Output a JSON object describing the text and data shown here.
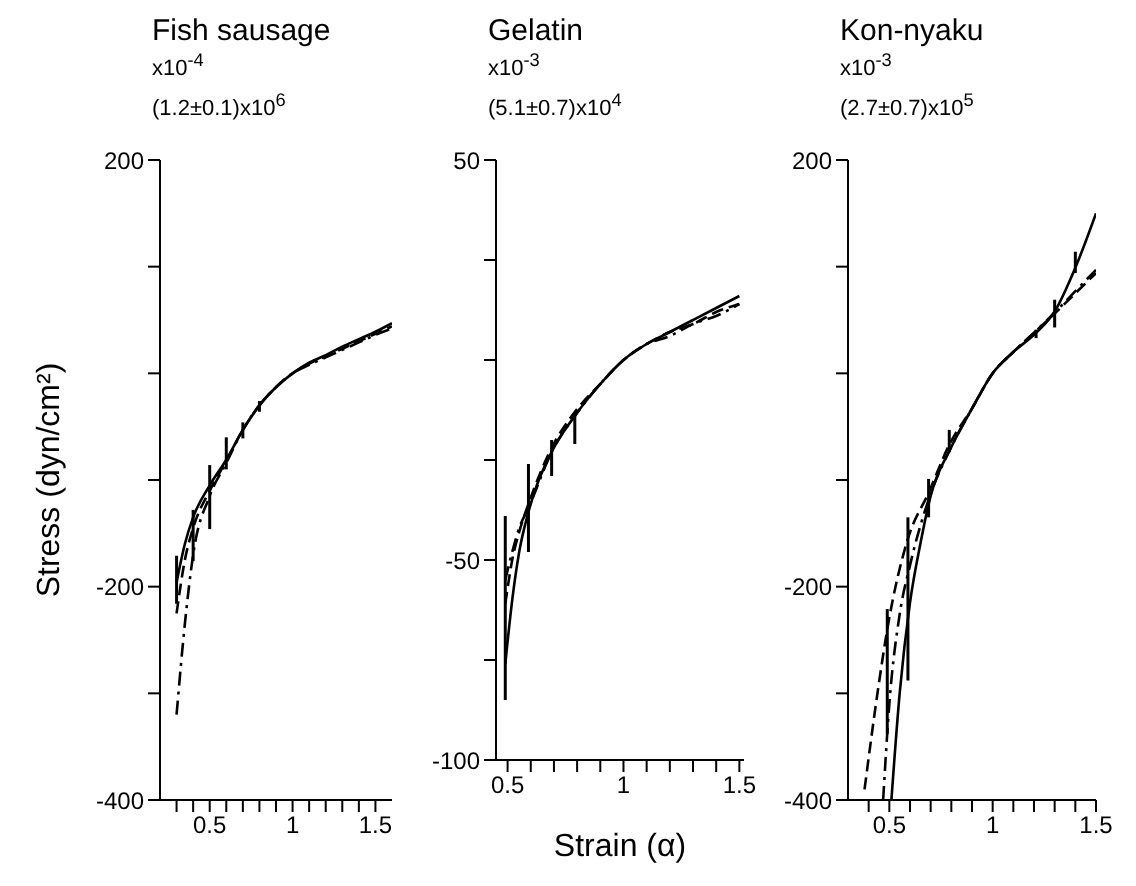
{
  "chart_data": [
    {
      "type": "line",
      "title": "Fish sausage",
      "ylabel": "Stress (dyn/cm²)",
      "annotations": [
        "x10$^{-4}$",
        "(1.2±0.1)x10$^{6}$"
      ],
      "xlim": [
        0.2,
        1.6
      ],
      "ylim": [
        -400,
        200
      ],
      "xticks": [
        {
          "value": 0.3,
          "label": null
        },
        {
          "value": 0.4,
          "label": null
        },
        {
          "value": 0.5,
          "label": "0.5"
        },
        {
          "value": 0.6,
          "label": null
        },
        {
          "value": 0.7,
          "label": null
        },
        {
          "value": 0.8,
          "label": null
        },
        {
          "value": 0.9,
          "label": null
        },
        1,
        {
          "value": 1.1,
          "label": null
        },
        {
          "value": 1.2,
          "label": null
        },
        {
          "value": 1.3,
          "label": null
        },
        {
          "value": 1.4,
          "label": null
        },
        1.5
      ],
      "yticks": [
        -400,
        {
          "value": -300,
          "label": null
        },
        -200,
        {
          "value": -100,
          "label": null
        },
        {
          "value": 0,
          "label": null
        },
        {
          "value": 100,
          "label": null
        },
        200
      ],
      "grid": false,
      "marker": "none",
      "series": [
        {
          "color": "#000000",
          "line_style": "solid",
          "x": [
            0.3,
            0.35,
            0.4,
            0.5,
            0.6,
            0.7,
            0.8,
            0.9,
            1,
            1.1,
            1.2,
            1.3,
            1.4,
            1.5,
            1.6
          ],
          "values": [
            -196,
            -160,
            -135,
            -105,
            -81,
            -53,
            -30,
            -13,
            0,
            10,
            17,
            25,
            32,
            39,
            47
          ],
          "errors": [
            [
              -216,
              -171
            ],
            null,
            [
              -176,
              -128
            ],
            [
              -146,
              -86
            ],
            [
              -90,
              -60
            ],
            [
              -61,
              -46
            ],
            [
              -36,
              -26
            ],
            null,
            null,
            null,
            null,
            null,
            null,
            null,
            null
          ]
        },
        {
          "color": "#000000",
          "line_style": "dashed",
          "x": [
            0.3,
            0.35,
            0.4,
            0.5,
            0.6,
            0.7,
            0.8,
            0.9,
            1,
            1.1,
            1.2,
            1.3,
            1.4,
            1.5,
            1.6
          ],
          "values": [
            -225,
            -175,
            -145,
            -110,
            -82,
            -53,
            -30,
            -13,
            0,
            9,
            16,
            23,
            30,
            37,
            44
          ]
        },
        {
          "color": "#000000",
          "line_style": "dotted",
          "x": [
            0.3,
            0.35,
            0.4,
            0.5,
            0.6,
            0.7,
            0.8,
            0.9,
            1,
            1.1,
            1.2,
            1.3,
            1.4,
            1.5,
            1.6
          ],
          "values": [
            -320,
            -235,
            -170,
            -115,
            -84,
            -53,
            -30,
            -13,
            0,
            8,
            15,
            22,
            29,
            36,
            42
          ]
        }
      ]
    },
    {
      "type": "line",
      "title": "Gelatin",
      "xlabel": "Strain (α)",
      "annotations": [
        "x10$^{-3}$",
        "(5.1±0.7)x10$^{4}$"
      ],
      "xlim": [
        0.45,
        1.52
      ],
      "ylim": [
        -100,
        50
      ],
      "xticks": [
        0.5,
        {
          "value": 0.6,
          "label": null
        },
        {
          "value": 0.7,
          "label": null
        },
        {
          "value": 0.8,
          "label": null
        },
        {
          "value": 0.9,
          "label": null
        },
        1,
        {
          "value": 1.1,
          "label": null
        },
        {
          "value": 1.2,
          "label": null
        },
        {
          "value": 1.3,
          "label": null
        },
        {
          "value": 1.4,
          "label": null
        },
        1.5
      ],
      "yticks": [
        -100,
        {
          "value": -75,
          "label": null
        },
        -50,
        {
          "value": -25,
          "label": null
        },
        {
          "value": 0,
          "label": null
        },
        {
          "value": 25,
          "label": null
        },
        50
      ],
      "grid": false,
      "marker": "none",
      "series": [
        {
          "color": "#000000",
          "line_style": "solid",
          "x": [
            0.49,
            0.52,
            0.55,
            0.59,
            0.69,
            0.79,
            0.9,
            1,
            1.1,
            1.2,
            1.3,
            1.4,
            1.5
          ],
          "values": [
            -76,
            -60,
            -48,
            -38,
            -23,
            -14,
            -6,
            0,
            4,
            7,
            10,
            13,
            16
          ],
          "errors": [
            [
              -85,
              -39
            ],
            null,
            null,
            [
              -48,
              -26
            ],
            [
              -29,
              -20
            ],
            [
              -21,
              -13
            ],
            null,
            null,
            null,
            null,
            null,
            null,
            null
          ]
        },
        {
          "color": "#000000",
          "line_style": "dashed",
          "x": [
            0.49,
            0.52,
            0.55,
            0.59,
            0.69,
            0.79,
            0.9,
            1,
            1.1,
            1.2,
            1.3,
            1.4,
            1.5
          ],
          "values": [
            -61,
            -50,
            -43,
            -36,
            -22,
            -13,
            -6,
            0,
            4,
            7,
            9,
            12,
            14
          ]
        },
        {
          "color": "#000000",
          "line_style": "dotted",
          "x": [
            0.49,
            0.52,
            0.55,
            0.59,
            0.69,
            0.79,
            0.9,
            1,
            1.1,
            1.2,
            1.3,
            1.4,
            1.5
          ],
          "values": [
            -55,
            -48,
            -42,
            -37,
            -23,
            -14,
            -6,
            0,
            4,
            6,
            9,
            11,
            14
          ]
        }
      ]
    },
    {
      "type": "line",
      "title": "Kon-nyaku",
      "annotations": [
        "x10$^{-3}$",
        "(2.7±0.7)x10$^{5}$"
      ],
      "xlim": [
        0.3,
        1.5
      ],
      "ylim": [
        -400,
        200
      ],
      "xticks": [
        {
          "value": 0.4,
          "label": null
        },
        0.5,
        {
          "value": 0.6,
          "label": null
        },
        {
          "value": 0.7,
          "label": null
        },
        {
          "value": 0.8,
          "label": null
        },
        {
          "value": 0.9,
          "label": null
        },
        1,
        {
          "value": 1.1,
          "label": null
        },
        {
          "value": 1.2,
          "label": null
        },
        {
          "value": 1.3,
          "label": null
        },
        {
          "value": 1.4,
          "label": null
        },
        1.5
      ],
      "yticks": [
        -400,
        {
          "value": -300,
          "label": null
        },
        -200,
        {
          "value": -100,
          "label": null
        },
        {
          "value": 0,
          "label": null
        },
        {
          "value": 100,
          "label": null
        },
        200
      ],
      "grid": false,
      "marker": "none",
      "series": [
        {
          "color": "#000000",
          "line_style": "solid",
          "x": [
            0.51,
            0.55,
            0.6,
            0.65,
            0.7,
            0.8,
            0.9,
            1,
            1.1,
            1.21,
            1.3,
            1.4,
            1.5
          ],
          "values": [
            -400,
            -300,
            -215,
            -160,
            -115,
            -69,
            -33,
            0,
            20,
            38,
            58,
            99,
            150
          ],
          "errors": [
            null,
            null,
            null,
            null,
            null,
            null,
            null,
            null,
            null,
            [
              33,
              41
            ],
            [
              43,
              69
            ],
            [
              94,
              114
            ],
            null
          ]
        },
        {
          "color": "#000000",
          "line_style": "dashed",
          "x": [
            0.38,
            0.45,
            0.49,
            0.59,
            0.69,
            0.79,
            0.9,
            1,
            1.1,
            1.2,
            1.3,
            1.4,
            1.5
          ],
          "values": [
            -390,
            -290,
            -240,
            -155,
            -112,
            -67,
            -33,
            0,
            20,
            38,
            56,
            75,
            94
          ],
          "errors": [
            null,
            null,
            [
              -338,
              -221
            ],
            [
              -288,
              -135
            ],
            [
              -135,
              -99
            ],
            [
              -74,
              -53
            ],
            null,
            null,
            null,
            null,
            null,
            null,
            null
          ]
        },
        {
          "color": "#000000",
          "line_style": "dotted",
          "x": [
            0.47,
            0.5,
            0.55,
            0.6,
            0.7,
            0.8,
            0.9,
            1,
            1.1,
            1.2,
            1.3,
            1.4,
            1.5
          ],
          "values": [
            -400,
            -310,
            -226,
            -180,
            -113,
            -69,
            -33,
            0,
            20,
            38,
            57,
            77,
            97
          ]
        }
      ]
    }
  ]
}
